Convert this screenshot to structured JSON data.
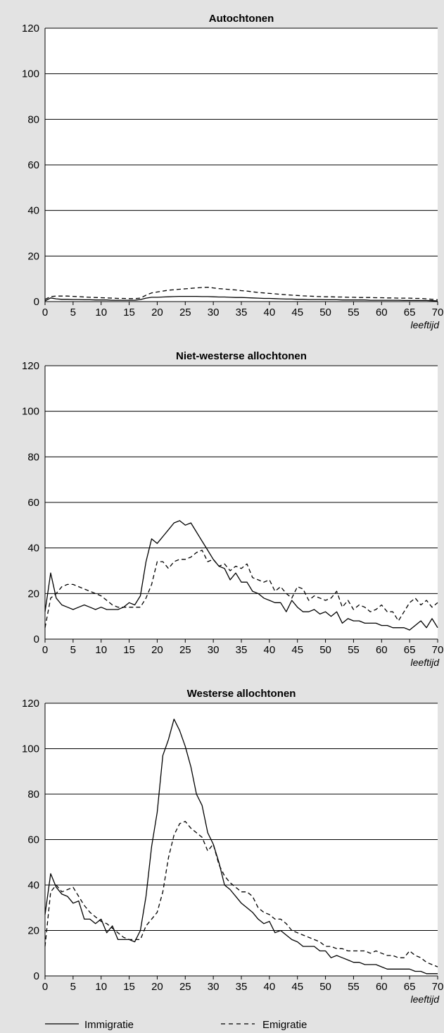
{
  "chart_data": [
    {
      "type": "line",
      "title": "Autochtonen",
      "xlabel": "leeftijd",
      "ylabel": "",
      "xlim": [
        0,
        70
      ],
      "ylim": [
        0,
        120
      ],
      "xticks": [
        0,
        5,
        10,
        15,
        20,
        25,
        30,
        35,
        40,
        45,
        50,
        55,
        60,
        65,
        70
      ],
      "yticks": [
        0,
        20,
        40,
        60,
        80,
        100,
        120
      ],
      "grid": "horizontal",
      "series": [
        {
          "name": "Immigratie",
          "style": "solid",
          "x": [
            0,
            1,
            2,
            3,
            4,
            5,
            6,
            7,
            8,
            9,
            10,
            11,
            12,
            13,
            14,
            15,
            16,
            17,
            18,
            19,
            20,
            21,
            22,
            23,
            24,
            25,
            26,
            27,
            28,
            29,
            30,
            31,
            32,
            33,
            34,
            35,
            36,
            37,
            38,
            39,
            40,
            41,
            42,
            43,
            44,
            45,
            46,
            47,
            48,
            49,
            50,
            51,
            52,
            53,
            54,
            55,
            56,
            57,
            58,
            59,
            60,
            61,
            62,
            63,
            64,
            65,
            66,
            67,
            68,
            69,
            70
          ],
          "values": [
            0.3,
            1.6,
            1.2,
            1.0,
            1.0,
            0.9,
            0.9,
            0.8,
            0.8,
            0.7,
            0.7,
            0.7,
            0.6,
            0.6,
            0.6,
            0.6,
            0.6,
            0.9,
            1.5,
            1.9,
            1.9,
            2.0,
            2.1,
            2.2,
            2.3,
            2.3,
            2.3,
            2.3,
            2.2,
            2.2,
            2.1,
            2.0,
            2.0,
            1.9,
            1.8,
            1.8,
            1.7,
            1.6,
            1.5,
            1.4,
            1.4,
            1.3,
            1.2,
            1.1,
            1.1,
            1.0,
            1.0,
            0.9,
            0.9,
            0.9,
            0.8,
            0.8,
            0.8,
            0.7,
            0.7,
            0.7,
            0.7,
            0.7,
            0.6,
            0.6,
            0.6,
            0.6,
            0.6,
            0.6,
            0.5,
            0.5,
            0.5,
            0.5,
            0.5,
            0.4,
            0.3
          ]
        },
        {
          "name": "Emigratie",
          "style": "dashed",
          "x": [
            0,
            1,
            2,
            3,
            4,
            5,
            6,
            7,
            8,
            9,
            10,
            11,
            12,
            13,
            14,
            15,
            16,
            17,
            18,
            19,
            20,
            21,
            22,
            23,
            24,
            25,
            26,
            27,
            28,
            29,
            30,
            31,
            32,
            33,
            34,
            35,
            36,
            37,
            38,
            39,
            40,
            41,
            42,
            43,
            44,
            45,
            46,
            47,
            48,
            49,
            50,
            51,
            52,
            53,
            54,
            55,
            56,
            57,
            58,
            59,
            60,
            61,
            62,
            63,
            64,
            65,
            66,
            67,
            68,
            69,
            70
          ],
          "values": [
            1.0,
            2.2,
            2.4,
            2.4,
            2.4,
            2.3,
            2.2,
            2.0,
            1.9,
            1.8,
            1.7,
            1.6,
            1.5,
            1.4,
            1.4,
            1.3,
            1.3,
            1.5,
            2.8,
            3.8,
            4.2,
            4.6,
            5.0,
            5.2,
            5.4,
            5.6,
            5.8,
            6.0,
            6.2,
            6.3,
            6.0,
            5.7,
            5.5,
            5.3,
            5.1,
            4.8,
            4.6,
            4.3,
            4.0,
            3.8,
            3.6,
            3.4,
            3.2,
            3.0,
            2.8,
            2.7,
            2.5,
            2.4,
            2.3,
            2.2,
            2.1,
            2.1,
            2.0,
            2.0,
            1.9,
            1.9,
            1.8,
            1.8,
            1.8,
            1.7,
            1.7,
            1.6,
            1.6,
            1.5,
            1.5,
            1.5,
            1.4,
            1.4,
            1.2,
            1.0,
            0.8
          ]
        }
      ]
    },
    {
      "type": "line",
      "title": "Niet-westerse allochtonen",
      "xlabel": "leeftijd",
      "ylabel": "",
      "xlim": [
        0,
        70
      ],
      "ylim": [
        0,
        120
      ],
      "xticks": [
        0,
        5,
        10,
        15,
        20,
        25,
        30,
        35,
        40,
        45,
        50,
        55,
        60,
        65,
        70
      ],
      "yticks": [
        0,
        20,
        40,
        60,
        80,
        100,
        120
      ],
      "grid": "horizontal",
      "series": [
        {
          "name": "Immigratie",
          "style": "solid",
          "x": [
            0,
            1,
            2,
            3,
            4,
            5,
            6,
            7,
            8,
            9,
            10,
            11,
            12,
            13,
            14,
            15,
            16,
            17,
            18,
            19,
            20,
            21,
            22,
            23,
            24,
            25,
            26,
            27,
            28,
            29,
            30,
            31,
            32,
            33,
            34,
            35,
            36,
            37,
            38,
            39,
            40,
            41,
            42,
            43,
            44,
            45,
            46,
            47,
            48,
            49,
            50,
            51,
            52,
            53,
            54,
            55,
            56,
            57,
            58,
            59,
            60,
            61,
            62,
            63,
            64,
            65,
            66,
            67,
            68,
            69,
            70
          ],
          "values": [
            12,
            29,
            18,
            15,
            14,
            13,
            14,
            15,
            14,
            13,
            14,
            13,
            13,
            13,
            14,
            16,
            15,
            19,
            34,
            44,
            42,
            45,
            48,
            51,
            52,
            50,
            51,
            47,
            43,
            39,
            35,
            32,
            31,
            26,
            29,
            25,
            25,
            21,
            20,
            18,
            17,
            16,
            16,
            12,
            17,
            14,
            12,
            12,
            13,
            11,
            12,
            10,
            12,
            7,
            9,
            8,
            8,
            7,
            7,
            7,
            6,
            6,
            5,
            5,
            5,
            4,
            6,
            8,
            5,
            9,
            5
          ]
        },
        {
          "name": "Emigratie",
          "style": "dashed",
          "x": [
            0,
            1,
            2,
            3,
            4,
            5,
            6,
            7,
            8,
            9,
            10,
            11,
            12,
            13,
            14,
            15,
            16,
            17,
            18,
            19,
            20,
            21,
            22,
            23,
            24,
            25,
            26,
            27,
            28,
            29,
            30,
            31,
            32,
            33,
            34,
            35,
            36,
            37,
            38,
            39,
            40,
            41,
            42,
            43,
            44,
            45,
            46,
            47,
            48,
            49,
            50,
            51,
            52,
            53,
            54,
            55,
            56,
            57,
            58,
            59,
            60,
            61,
            62,
            63,
            64,
            65,
            66,
            67,
            68,
            69,
            70
          ],
          "values": [
            5,
            18,
            20,
            23,
            24,
            24,
            23,
            22,
            21,
            20,
            19,
            17,
            15,
            14,
            14,
            14,
            14,
            14,
            18,
            24,
            34,
            34,
            31,
            34,
            35,
            35,
            36,
            38,
            39,
            34,
            35,
            32,
            33,
            30,
            32,
            31,
            33,
            27,
            26,
            25,
            26,
            21,
            23,
            20,
            18,
            23,
            22,
            17,
            19,
            18,
            17,
            18,
            21,
            14,
            17,
            13,
            15,
            14,
            12,
            13,
            15,
            12,
            12,
            8,
            12,
            16,
            18,
            15,
            17,
            14,
            16
          ]
        }
      ]
    },
    {
      "type": "line",
      "title": "Westerse allochtonen",
      "xlabel": "leeftijd",
      "ylabel": "",
      "xlim": [
        0,
        70
      ],
      "ylim": [
        0,
        120
      ],
      "xticks": [
        0,
        5,
        10,
        15,
        20,
        25,
        30,
        35,
        40,
        45,
        50,
        55,
        60,
        65,
        70
      ],
      "yticks": [
        0,
        20,
        40,
        60,
        80,
        100,
        120
      ],
      "grid": "horizontal",
      "series": [
        {
          "name": "Immigratie",
          "style": "solid",
          "x": [
            0,
            1,
            2,
            3,
            4,
            5,
            6,
            7,
            8,
            9,
            10,
            11,
            12,
            13,
            14,
            15,
            16,
            17,
            18,
            19,
            20,
            21,
            22,
            23,
            24,
            25,
            26,
            27,
            28,
            29,
            30,
            31,
            32,
            33,
            34,
            35,
            36,
            37,
            38,
            39,
            40,
            41,
            42,
            43,
            44,
            45,
            46,
            47,
            48,
            49,
            50,
            51,
            52,
            53,
            54,
            55,
            56,
            57,
            58,
            59,
            60,
            61,
            62,
            63,
            64,
            65,
            66,
            67,
            68,
            69,
            70
          ],
          "values": [
            27,
            45,
            39,
            36,
            35,
            32,
            33,
            25,
            25,
            23,
            25,
            19,
            22,
            16,
            16,
            16,
            15,
            20,
            35,
            57,
            72,
            97,
            104,
            113,
            108,
            101,
            92,
            80,
            75,
            63,
            58,
            50,
            40,
            38,
            35,
            32,
            30,
            28,
            25,
            23,
            24,
            19,
            20,
            18,
            16,
            15,
            13,
            13,
            13,
            11,
            11,
            8,
            9,
            8,
            7,
            6,
            6,
            5,
            5,
            5,
            4,
            3,
            3,
            3,
            3,
            3,
            2,
            2,
            1,
            1,
            1
          ]
        },
        {
          "name": "Emigratie",
          "style": "dashed",
          "x": [
            0,
            1,
            2,
            3,
            4,
            5,
            6,
            7,
            8,
            9,
            10,
            11,
            12,
            13,
            14,
            15,
            16,
            17,
            18,
            19,
            20,
            21,
            22,
            23,
            24,
            25,
            26,
            27,
            28,
            29,
            30,
            31,
            32,
            33,
            34,
            35,
            36,
            37,
            38,
            39,
            40,
            41,
            42,
            43,
            44,
            45,
            46,
            47,
            48,
            49,
            50,
            51,
            52,
            53,
            54,
            55,
            56,
            57,
            58,
            59,
            60,
            61,
            62,
            63,
            64,
            65,
            66,
            67,
            68,
            69,
            70
          ],
          "values": [
            13,
            37,
            40,
            37,
            38,
            39,
            35,
            31,
            28,
            26,
            24,
            23,
            21,
            19,
            17,
            16,
            16,
            16,
            22,
            25,
            28,
            37,
            52,
            62,
            67,
            68,
            65,
            63,
            61,
            55,
            58,
            49,
            44,
            41,
            39,
            37,
            37,
            35,
            30,
            28,
            27,
            25,
            25,
            23,
            20,
            19,
            18,
            17,
            16,
            15,
            13,
            13,
            12,
            12,
            11,
            11,
            11,
            11,
            10,
            11,
            10,
            9,
            9,
            8,
            8,
            11,
            9,
            8,
            6,
            5,
            4
          ]
        }
      ]
    }
  ],
  "legend": [
    {
      "label": "Immigratie",
      "style": "solid"
    },
    {
      "label": "Emigratie",
      "style": "dashed"
    }
  ]
}
